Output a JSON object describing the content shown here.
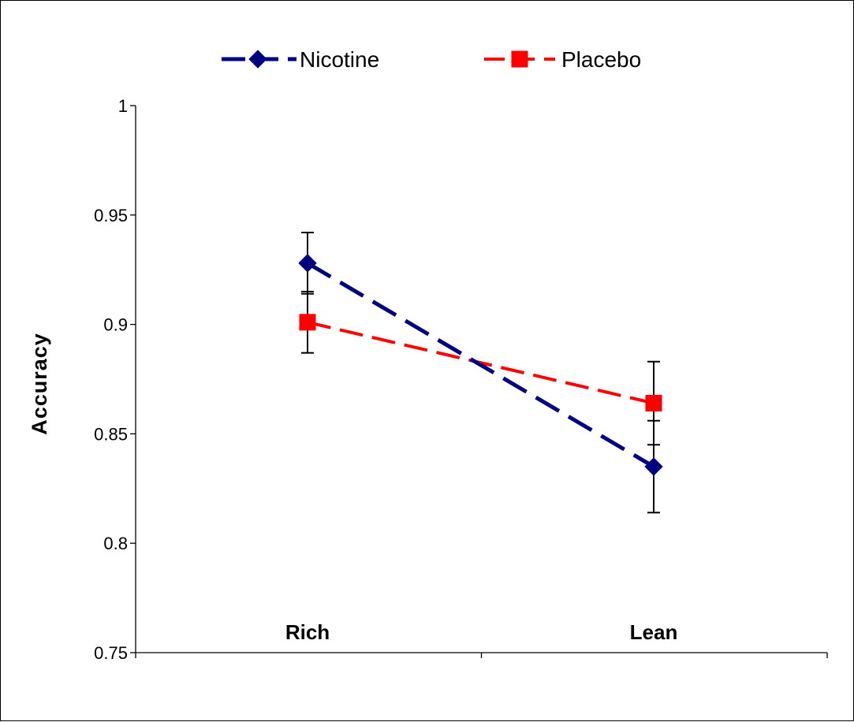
{
  "chart_data": {
    "type": "line",
    "title": "",
    "xlabel": "",
    "ylabel": "Accuracy",
    "categories": [
      "Rich",
      "Lean"
    ],
    "ylim": [
      0.75,
      1
    ],
    "yticks": [
      "0.75",
      "0.8",
      "0.85",
      "0.9",
      "0.95",
      "1"
    ],
    "grid": false,
    "legend_position": "top",
    "series": [
      {
        "name": "Nicotine",
        "values": [
          0.928,
          0.835
        ],
        "error": [
          0.014,
          0.021
        ],
        "color": "#000080",
        "marker": "diamond",
        "line_style": "dashed"
      },
      {
        "name": "Placebo",
        "values": [
          0.901,
          0.864
        ],
        "error": [
          0.014,
          0.019
        ],
        "color": "#ff0000",
        "marker": "square",
        "line_style": "dashed"
      }
    ]
  }
}
